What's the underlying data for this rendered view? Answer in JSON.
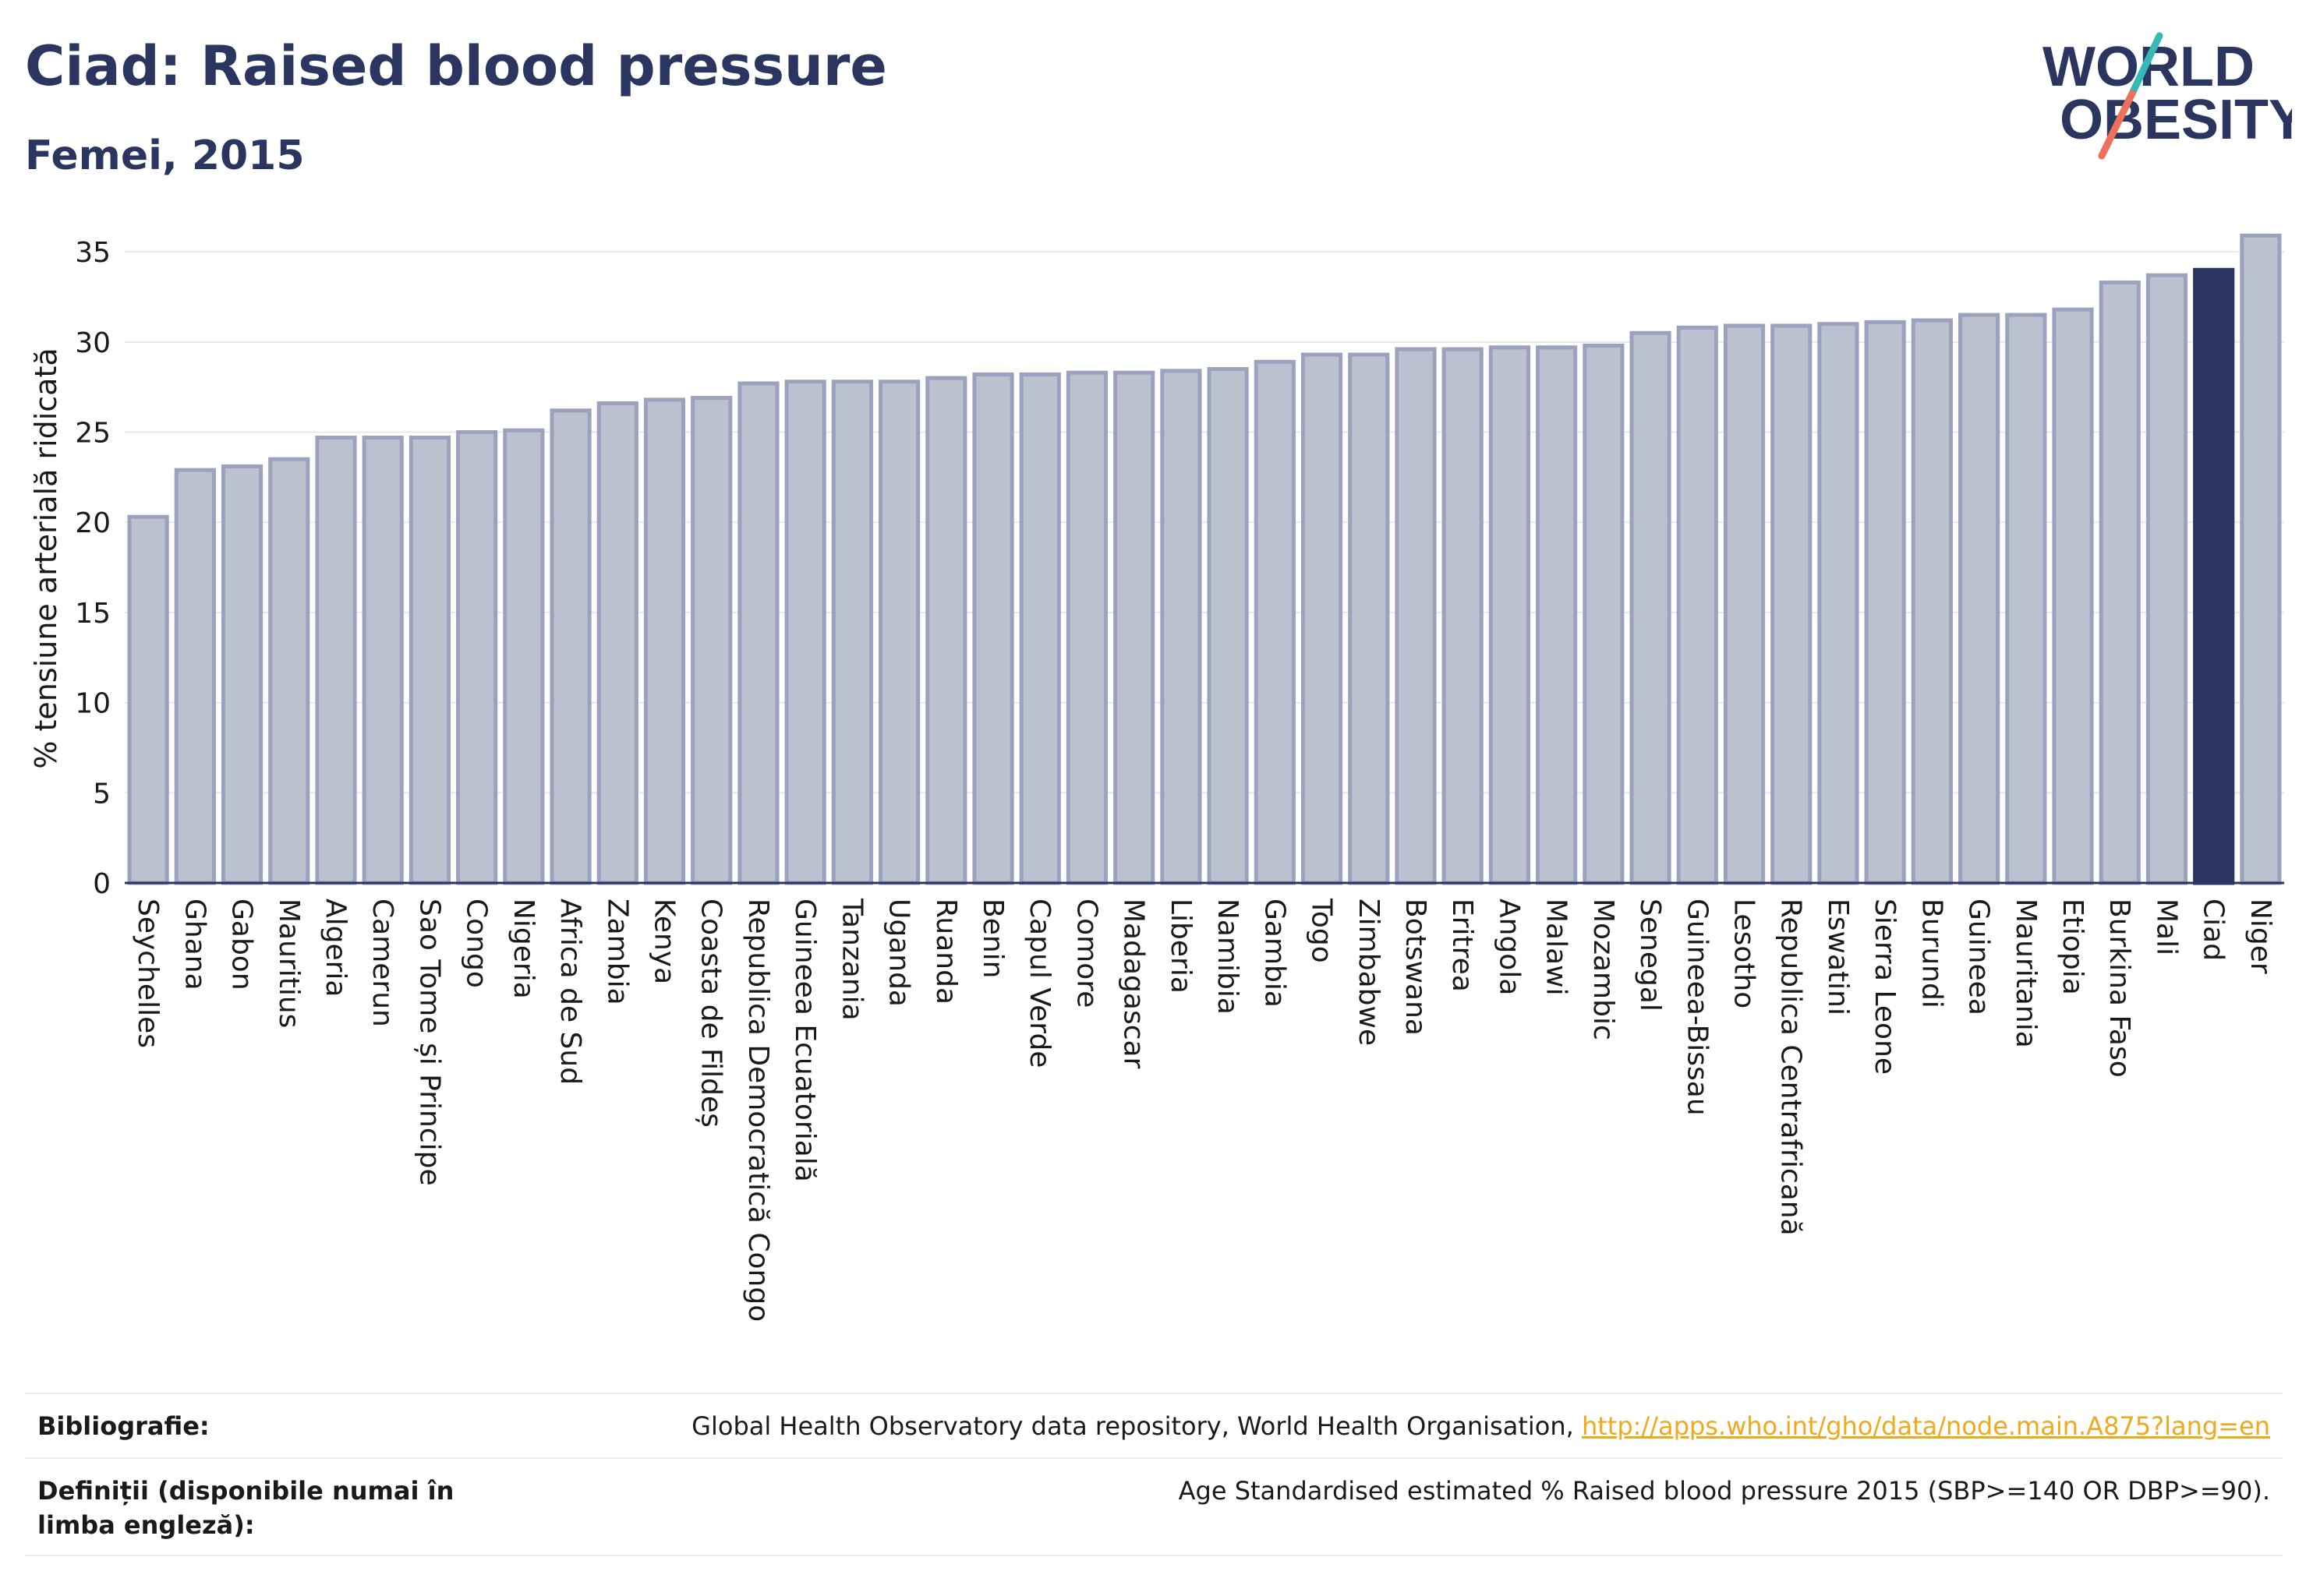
{
  "header": {
    "title": "Ciad: Raised blood pressure",
    "subtitle": "Femei, 2015"
  },
  "logo": {
    "line1": "WORLD",
    "line2": "OBESITY"
  },
  "chart_data": {
    "type": "bar",
    "ylabel": "% tensiune arterială ridicată",
    "xlabel": "",
    "ylim": [
      0,
      36
    ],
    "yticks": [
      0,
      5,
      10,
      15,
      20,
      25,
      30,
      35
    ],
    "grid": true,
    "highlight": "Ciad",
    "colors": {
      "bar": "#bcc1d0",
      "bar_border": "#9aa2bd",
      "highlight": "#2a3560",
      "grid": "#e6e8ee",
      "axis": "#2a3560"
    },
    "categories": [
      "Seychelles",
      "Ghana",
      "Gabon",
      "Mauritius",
      "Algeria",
      "Camerun",
      "Sao Tome și Principe",
      "Congo",
      "Nigeria",
      "Africa de Sud",
      "Zambia",
      "Kenya",
      "Coasta de Fildeș",
      "Republica Democratică Congo",
      "Guineea Ecuatorială",
      "Tanzania",
      "Uganda",
      "Ruanda",
      "Benin",
      "Capul Verde",
      "Comore",
      "Madagascar",
      "Liberia",
      "Namibia",
      "Gambia",
      "Togo",
      "Zimbabwe",
      "Botswana",
      "Eritrea",
      "Angola",
      "Malawi",
      "Mozambic",
      "Senegal",
      "Guineea-Bissau",
      "Lesotho",
      "Republica Centrafricană",
      "Eswatini",
      "Sierra Leone",
      "Burundi",
      "Guineea",
      "Mauritania",
      "Etiopia",
      "Burkina Faso",
      "Mali",
      "Ciad",
      "Niger"
    ],
    "values": [
      20.3,
      22.9,
      23.1,
      23.5,
      24.7,
      24.7,
      24.7,
      25.0,
      25.1,
      26.2,
      26.6,
      26.8,
      26.9,
      27.7,
      27.8,
      27.8,
      27.8,
      28.0,
      28.2,
      28.2,
      28.3,
      28.3,
      28.4,
      28.5,
      28.9,
      29.3,
      29.3,
      29.6,
      29.6,
      29.7,
      29.7,
      29.8,
      30.5,
      30.8,
      30.9,
      30.9,
      31.0,
      31.1,
      31.2,
      31.5,
      31.5,
      31.8,
      33.3,
      33.7,
      34.0,
      35.9
    ]
  },
  "footer": {
    "bibliography_label": "Bibliografie:",
    "bibliography_text": "Global Health Observatory data repository, World Health Organisation, ",
    "bibliography_link": "http://apps.who.int/gho/data/node.main.A875?lang=en",
    "definitions_label": "Definiții (disponibile numai în limba engleză):",
    "definitions_text": "Age Standardised estimated % Raised blood pressure 2015 (SBP>=140 OR DBP>=90)."
  }
}
